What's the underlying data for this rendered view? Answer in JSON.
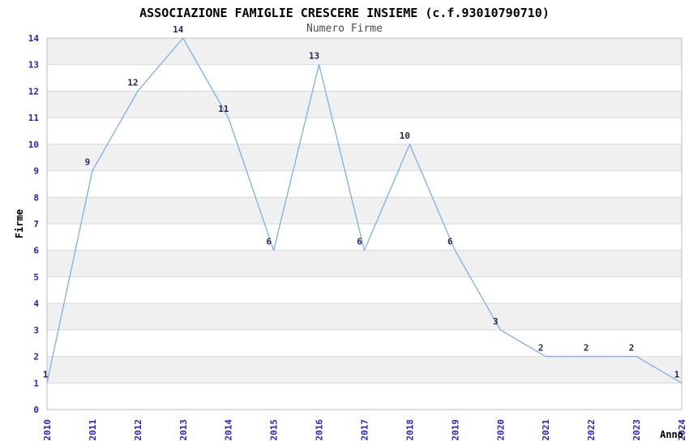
{
  "chart_data": {
    "type": "line",
    "title": "ASSOCIAZIONE FAMIGLIE CRESCERE INSIEME (c.f.93010790710)",
    "subtitle": "Numero Firme",
    "xlabel": "Anno",
    "ylabel": "Firme",
    "categories": [
      "2010",
      "2011",
      "2012",
      "2013",
      "2014",
      "2015",
      "2016",
      "2017",
      "2018",
      "2019",
      "2020",
      "2021",
      "2022",
      "2023",
      "2024"
    ],
    "values": [
      1,
      9,
      12,
      14,
      11,
      6,
      13,
      6,
      10,
      6,
      3,
      2,
      2,
      2,
      1
    ],
    "point_labels": [
      "1",
      "9",
      "12",
      "14",
      "11",
      "6",
      "13",
      "6",
      "10",
      "6",
      "3",
      "2",
      "2",
      "2",
      "1"
    ],
    "ylim": [
      0,
      14
    ],
    "ytick_step": 1,
    "yticks": [
      "0",
      "1",
      "2",
      "3",
      "4",
      "5",
      "6",
      "7",
      "8",
      "9",
      "10",
      "11",
      "12",
      "13",
      "14"
    ],
    "grid": "horizontal",
    "banded_rows": true,
    "legend_position": "none",
    "colors": {
      "line": "#7cb0e4",
      "point_label": "#26265e",
      "tick_label": "#2323cc",
      "axis_title": "#000000",
      "band_fill": "#f0f0f0",
      "grid_line": "#d9d9d9",
      "plot_border": "#bdbdbd",
      "background": "#ffffff"
    }
  }
}
